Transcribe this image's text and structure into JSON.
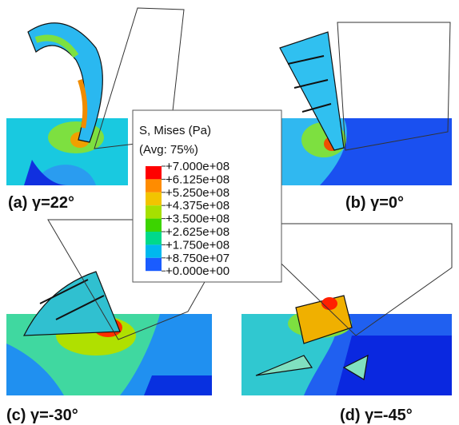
{
  "legend": {
    "title": "S, Mises (Pa)",
    "subtitle": "(Avg: 75%)",
    "levels": [
      "+7.000e+08",
      "+6.125e+08",
      "+5.250e+08",
      "+4.375e+08",
      "+3.500e+08",
      "+2.625e+08",
      "+1.750e+08",
      "+8.750e+07",
      "+0.000e+00"
    ],
    "colors": [
      "#ff0000",
      "#ff8c00",
      "#f2c400",
      "#a6e000",
      "#3cd400",
      "#00d98a",
      "#00b8ee",
      "#1a5cff"
    ]
  },
  "panels": [
    {
      "label": "(a) γ=22°"
    },
    {
      "label": "(b) γ=0°"
    },
    {
      "label": "(c) γ=-30°"
    },
    {
      "label": "(d) γ=-45°"
    }
  ]
}
